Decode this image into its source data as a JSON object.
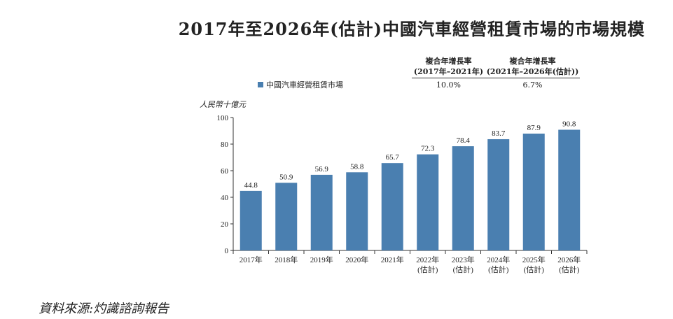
{
  "title": "2017年至2026年(估計)中國汽車經營租賃市場的市場規模",
  "cagr": [
    {
      "label_line1": "複合年增長率",
      "label_line2": "(2017年–2021年)",
      "value": "10.0%"
    },
    {
      "label_line1": "複合年增長率",
      "label_line2": "(2021年–2026年(估計))",
      "value": "6.7%"
    }
  ],
  "source": "資料來源:灼識諮詢報告",
  "chart_data": {
    "type": "bar",
    "title": "2017年至2026年(估計)中國汽車經營租賃市場的市場規模",
    "ylabel": "人民幣十億元",
    "ylim": [
      0,
      100
    ],
    "yticks": [
      0,
      20,
      40,
      60,
      80,
      100
    ],
    "categories": [
      [
        "2017年"
      ],
      [
        "2018年"
      ],
      [
        "2019年"
      ],
      [
        "2020年"
      ],
      [
        "2021年"
      ],
      [
        "2022年",
        "(估計)"
      ],
      [
        "2023年",
        "(估計)"
      ],
      [
        "2024年",
        "(估計)"
      ],
      [
        "2025年",
        "(估計)"
      ],
      [
        "2026年",
        "(估計)"
      ]
    ],
    "series": [
      {
        "name": "中國汽車經營租賃市場",
        "values": [
          44.8,
          50.9,
          56.9,
          58.8,
          65.7,
          72.3,
          78.4,
          83.7,
          87.9,
          90.8
        ],
        "color": "#4a7fb0"
      }
    ],
    "grid": false,
    "legend": "top-left"
  }
}
